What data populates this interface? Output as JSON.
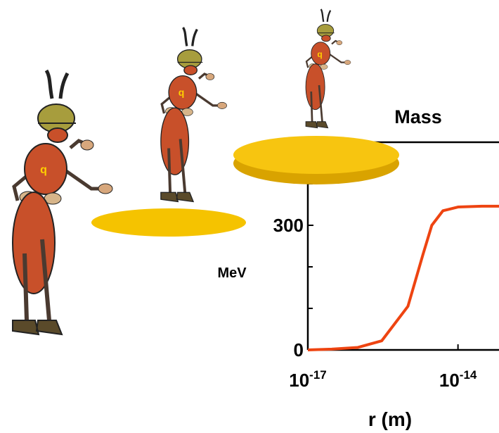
{
  "chart_data": {
    "type": "line",
    "title": "Mass",
    "y_label": "MeV",
    "x_label": "r (m)",
    "x_scale": "log",
    "xlim": [
      1e-17,
      6.6e-14
    ],
    "ylim": [
      0,
      500
    ],
    "xticks": [
      {
        "value": 1e-17,
        "label": "10",
        "exponent": "-17"
      },
      {
        "value": 1e-14,
        "label": "10",
        "exponent": "-14"
      }
    ],
    "yticks": [
      0,
      300
    ],
    "minor_yticks": [
      100,
      200,
      400
    ],
    "x": [
      1e-17,
      3e-17,
      1e-16,
      3e-16,
      1e-15,
      2e-15,
      3e-15,
      5e-15,
      1e-14,
      3e-14,
      6.6e-14
    ],
    "series": [
      {
        "color": "#ee4411",
        "values": [
          0,
          2,
          6,
          22,
          105,
          230,
          300,
          335,
          344,
          346,
          346
        ]
      }
    ]
  },
  "illustration": {
    "ant_labels": [
      "q",
      "q",
      "q"
    ]
  }
}
